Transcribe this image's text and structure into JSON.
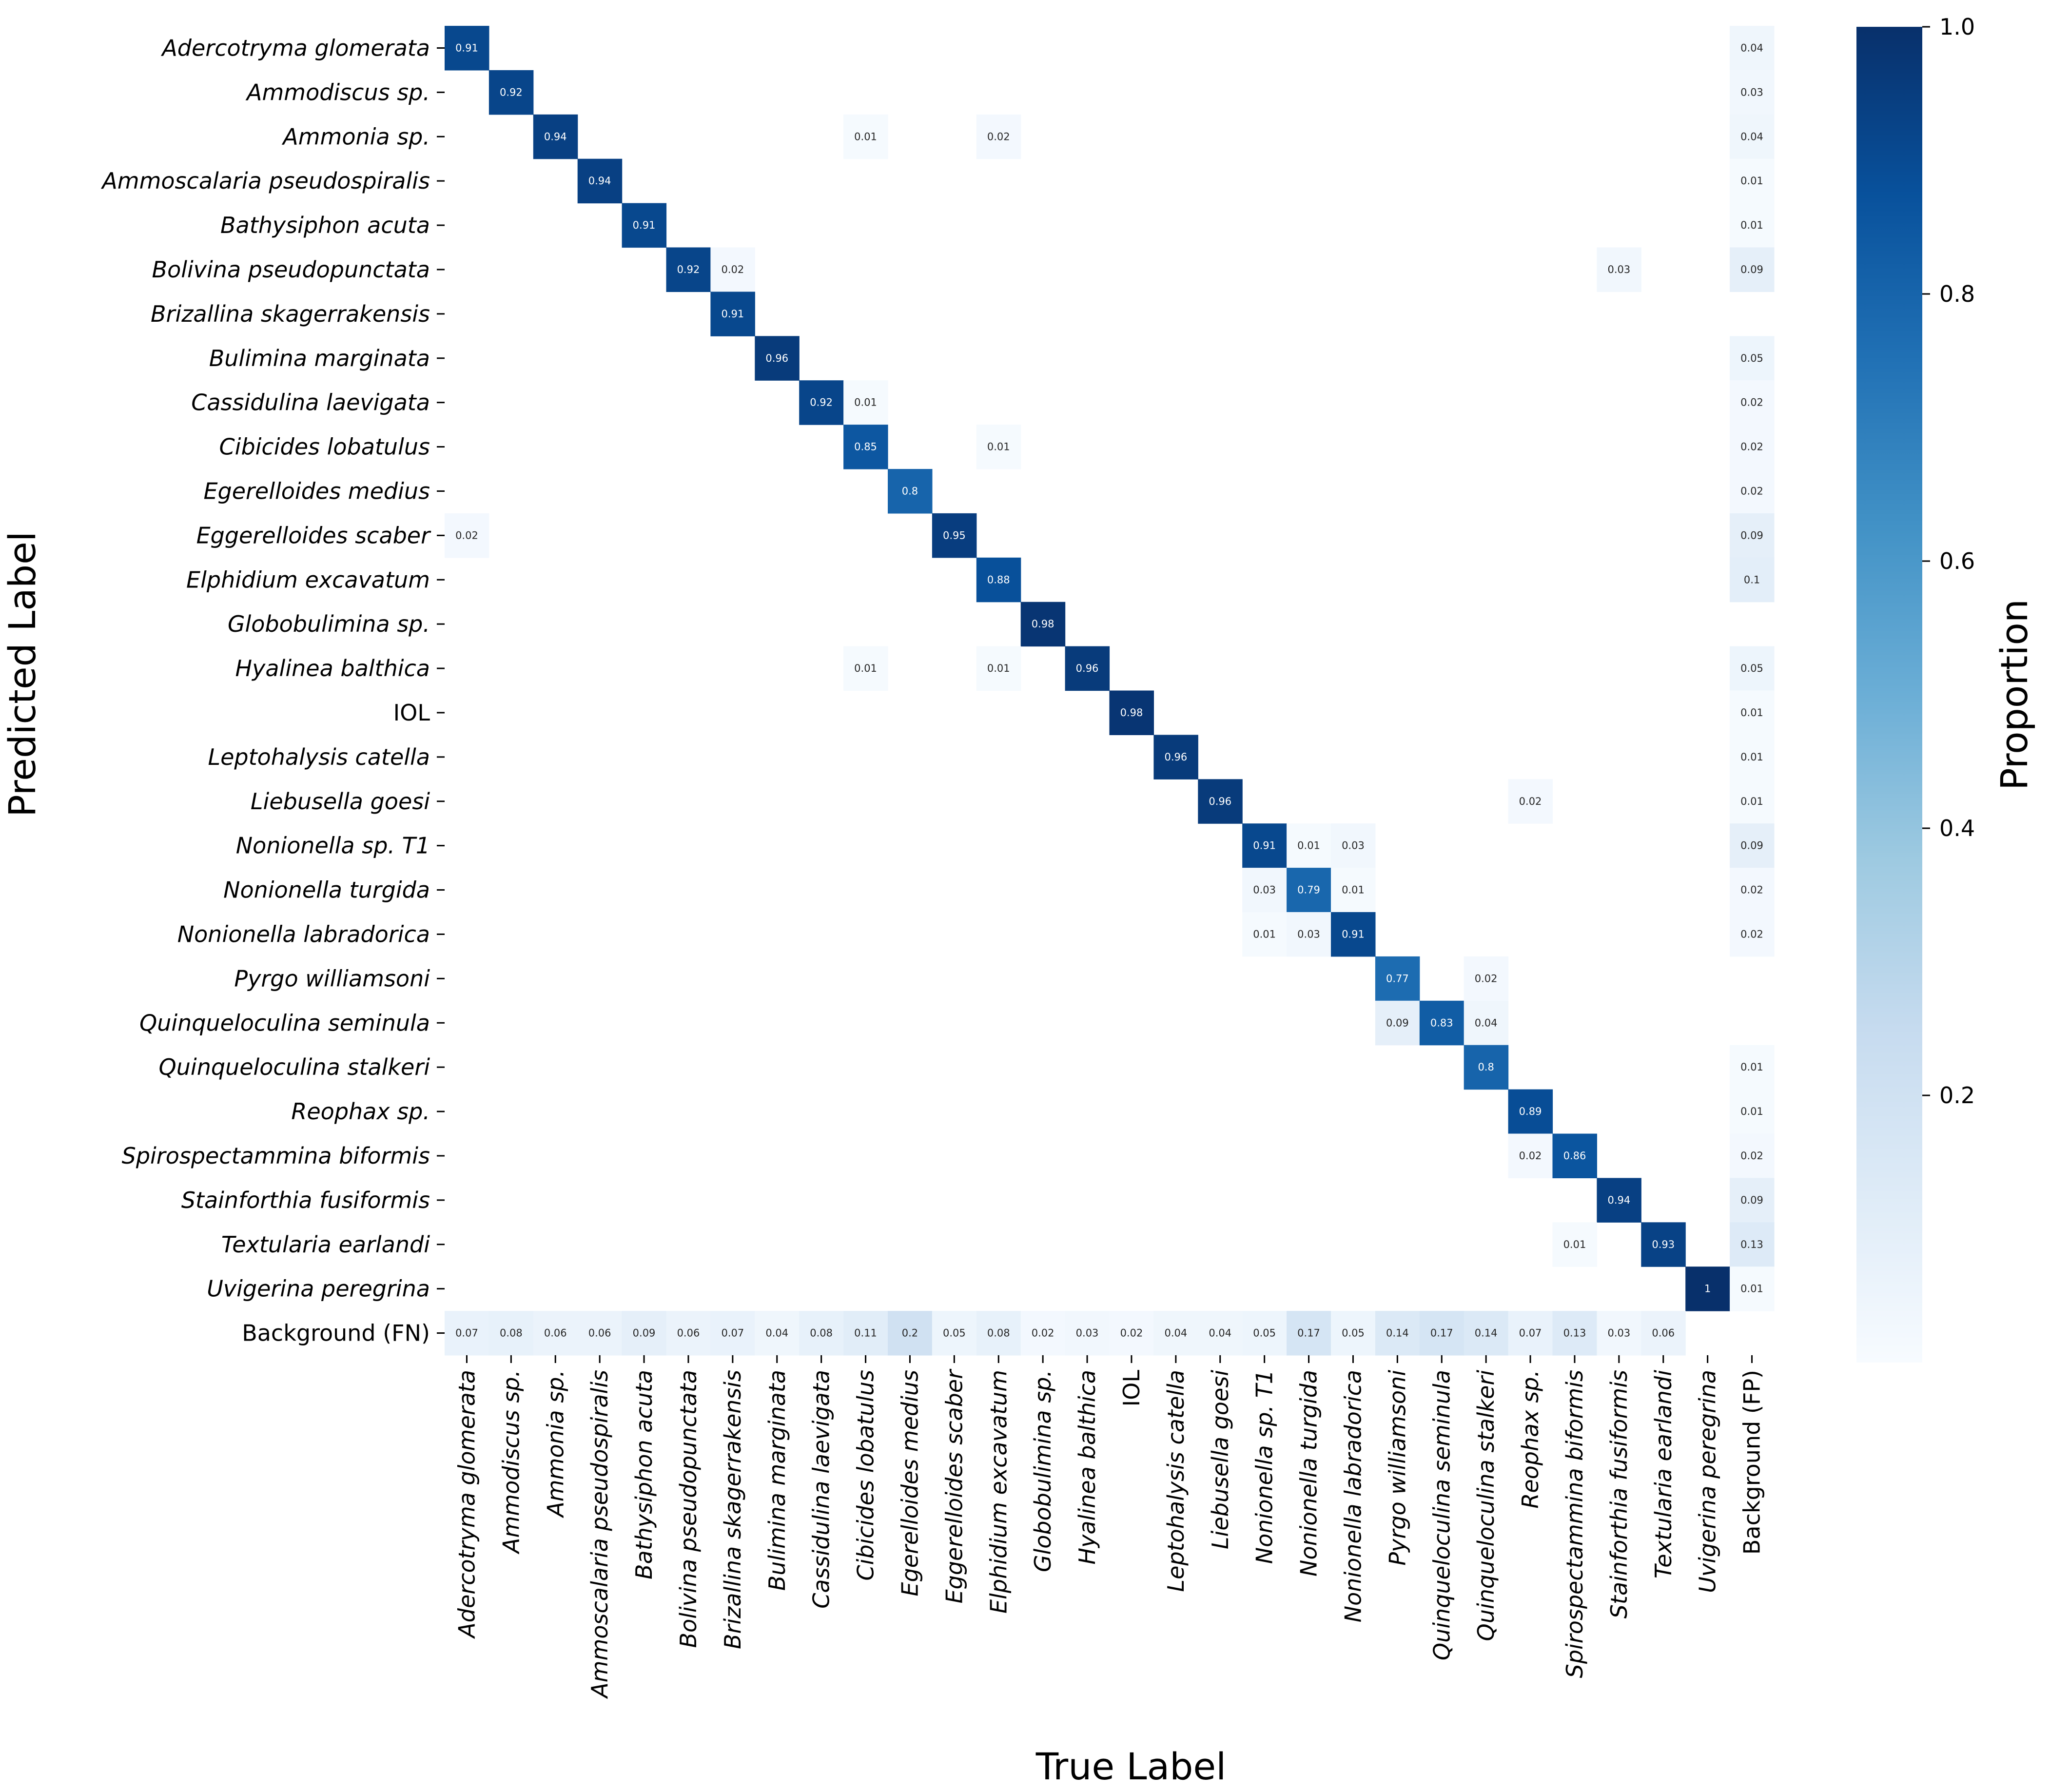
{
  "chart_data": {
    "type": "heatmap",
    "title": "",
    "xlabel": "True Label",
    "ylabel": "Predicted Label",
    "colorbar": {
      "label": "Proportion",
      "range": [
        0,
        1.0
      ],
      "ticks": [
        "0.2",
        "0.4",
        "0.6",
        "0.8",
        "1.0"
      ],
      "colormap": "Blues"
    },
    "labels": [
      {
        "text": "Adercotryma glomerata",
        "italic": true
      },
      {
        "text": "Ammodiscus sp.",
        "italic": true
      },
      {
        "text": "Ammonia sp.",
        "italic": true
      },
      {
        "text": "Ammoscalaria pseudospiralis",
        "italic": true
      },
      {
        "text": "Bathysiphon acuta",
        "italic": true
      },
      {
        "text": "Bolivina pseudopunctata",
        "italic": true
      },
      {
        "text": "Brizallina skagerrakensis",
        "italic": true
      },
      {
        "text": "Bulimina marginata",
        "italic": true
      },
      {
        "text": "Cassidulina laevigata",
        "italic": true
      },
      {
        "text": "Cibicides lobatulus",
        "italic": true
      },
      {
        "text": "Egerelloides medius",
        "italic": true
      },
      {
        "text": "Eggerelloides scaber",
        "italic": true
      },
      {
        "text": "Elphidium excavatum",
        "italic": true
      },
      {
        "text": "Globobulimina sp.",
        "italic": true
      },
      {
        "text": "Hyalinea balthica",
        "italic": true
      },
      {
        "text": "IOL",
        "italic": false
      },
      {
        "text": "Leptohalysis catella",
        "italic": true
      },
      {
        "text": "Liebusella goesi",
        "italic": true
      },
      {
        "text": "Nonionella sp. T1",
        "italic": true
      },
      {
        "text": "Nonionella turgida",
        "italic": true
      },
      {
        "text": "Nonionella labradorica",
        "italic": true
      },
      {
        "text": "Pyrgo williamsoni",
        "italic": true
      },
      {
        "text": "Quinqueloculina seminula",
        "italic": true
      },
      {
        "text": "Quinqueloculina stalkeri",
        "italic": true
      },
      {
        "text": "Reophax sp.",
        "italic": true
      },
      {
        "text": "Spirospectammina biformis",
        "italic": true
      },
      {
        "text": "Stainforthia fusiformis",
        "italic": true
      },
      {
        "text": "Textularia earlandi",
        "italic": true
      },
      {
        "text": "Uvigerina peregrina",
        "italic": true
      }
    ],
    "y_extra_label": "Background (FN)",
    "x_extra_label": "Background (FP)",
    "cells_note": "sparse list [row, col, value]; rows = predicted (0-28 classes, 29 = Background FN), cols = true (0-28 classes, 29 = Background FP); blank cells omitted",
    "cells": [
      [
        0,
        0,
        0.91
      ],
      [
        0,
        29,
        0.04
      ],
      [
        1,
        1,
        0.92
      ],
      [
        1,
        29,
        0.03
      ],
      [
        2,
        2,
        0.94
      ],
      [
        2,
        9,
        0.01
      ],
      [
        2,
        12,
        0.02
      ],
      [
        2,
        29,
        0.04
      ],
      [
        3,
        3,
        0.94
      ],
      [
        3,
        29,
        0.01
      ],
      [
        4,
        4,
        0.91
      ],
      [
        4,
        29,
        0.01
      ],
      [
        5,
        5,
        0.92
      ],
      [
        5,
        6,
        0.02
      ],
      [
        5,
        26,
        0.03
      ],
      [
        5,
        29,
        0.09
      ],
      [
        6,
        6,
        0.91
      ],
      [
        7,
        7,
        0.96
      ],
      [
        7,
        29,
        0.05
      ],
      [
        8,
        8,
        0.92
      ],
      [
        8,
        9,
        0.01
      ],
      [
        8,
        29,
        0.02
      ],
      [
        9,
        9,
        0.85
      ],
      [
        9,
        12,
        0.01
      ],
      [
        9,
        29,
        0.02
      ],
      [
        10,
        10,
        0.8
      ],
      [
        10,
        29,
        0.02
      ],
      [
        11,
        0,
        0.02
      ],
      [
        11,
        11,
        0.95
      ],
      [
        11,
        29,
        0.09
      ],
      [
        12,
        12,
        0.88
      ],
      [
        12,
        29,
        0.1
      ],
      [
        13,
        13,
        0.98
      ],
      [
        14,
        9,
        0.01
      ],
      [
        14,
        12,
        0.01
      ],
      [
        14,
        14,
        0.96
      ],
      [
        14,
        29,
        0.05
      ],
      [
        15,
        15,
        0.98
      ],
      [
        15,
        29,
        0.01
      ],
      [
        16,
        16,
        0.96
      ],
      [
        16,
        29,
        0.01
      ],
      [
        17,
        17,
        0.96
      ],
      [
        17,
        24,
        0.02
      ],
      [
        17,
        29,
        0.01
      ],
      [
        18,
        18,
        0.91
      ],
      [
        18,
        19,
        0.01
      ],
      [
        18,
        20,
        0.03
      ],
      [
        18,
        29,
        0.09
      ],
      [
        19,
        18,
        0.03
      ],
      [
        19,
        19,
        0.79
      ],
      [
        19,
        20,
        0.01
      ],
      [
        19,
        29,
        0.02
      ],
      [
        20,
        18,
        0.01
      ],
      [
        20,
        19,
        0.03
      ],
      [
        20,
        20,
        0.91
      ],
      [
        20,
        29,
        0.02
      ],
      [
        21,
        21,
        0.77
      ],
      [
        21,
        23,
        0.02
      ],
      [
        22,
        21,
        0.09
      ],
      [
        22,
        22,
        0.83
      ],
      [
        22,
        23,
        0.04
      ],
      [
        23,
        23,
        0.8
      ],
      [
        23,
        29,
        0.01
      ],
      [
        24,
        24,
        0.89
      ],
      [
        24,
        29,
        0.01
      ],
      [
        25,
        24,
        0.02
      ],
      [
        25,
        25,
        0.86
      ],
      [
        25,
        29,
        0.02
      ],
      [
        26,
        26,
        0.94
      ],
      [
        26,
        29,
        0.09
      ],
      [
        27,
        25,
        0.01
      ],
      [
        27,
        27,
        0.93
      ],
      [
        27,
        29,
        0.13
      ],
      [
        28,
        28,
        1
      ],
      [
        28,
        29,
        0.01
      ],
      [
        29,
        0,
        0.07
      ],
      [
        29,
        1,
        0.08
      ],
      [
        29,
        2,
        0.06
      ],
      [
        29,
        3,
        0.06
      ],
      [
        29,
        4,
        0.09
      ],
      [
        29,
        5,
        0.06
      ],
      [
        29,
        6,
        0.07
      ],
      [
        29,
        7,
        0.04
      ],
      [
        29,
        8,
        0.08
      ],
      [
        29,
        9,
        0.11
      ],
      [
        29,
        10,
        0.2
      ],
      [
        29,
        11,
        0.05
      ],
      [
        29,
        12,
        0.08
      ],
      [
        29,
        13,
        0.02
      ],
      [
        29,
        14,
        0.03
      ],
      [
        29,
        15,
        0.02
      ],
      [
        29,
        16,
        0.04
      ],
      [
        29,
        17,
        0.04
      ],
      [
        29,
        18,
        0.05
      ],
      [
        29,
        19,
        0.17
      ],
      [
        29,
        20,
        0.05
      ],
      [
        29,
        21,
        0.14
      ],
      [
        29,
        22,
        0.17
      ],
      [
        29,
        23,
        0.14
      ],
      [
        29,
        24,
        0.07
      ],
      [
        29,
        25,
        0.13
      ],
      [
        29,
        26,
        0.03
      ],
      [
        29,
        27,
        0.06
      ]
    ]
  }
}
